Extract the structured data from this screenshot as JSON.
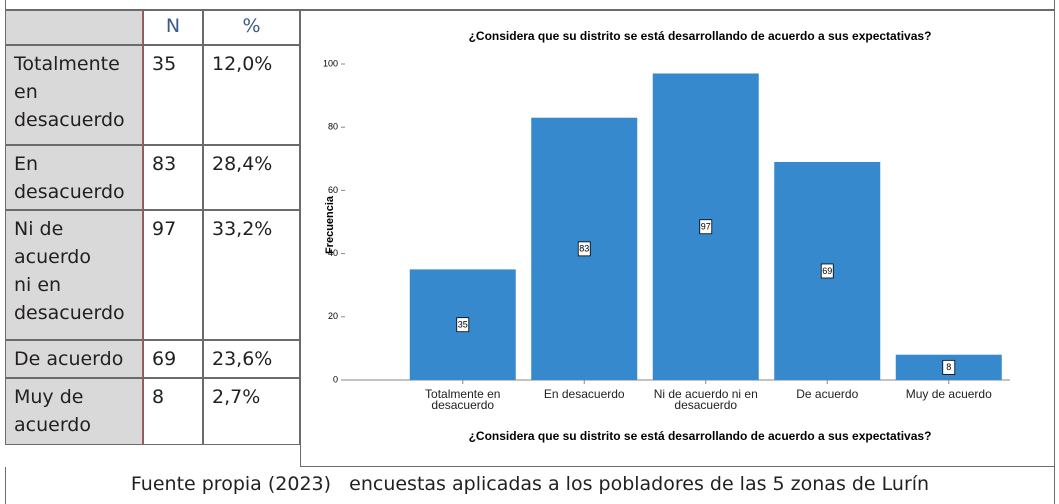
{
  "table": {
    "headers": [
      "N",
      "%"
    ],
    "rows": [
      {
        "label": "Totalmente en desacuerdo",
        "n": "35",
        "pct": "12,0%"
      },
      {
        "label": "En desacuerdo",
        "n": "83",
        "pct": "28,4%"
      },
      {
        "label": "Ni de acuerdo ni en desacuerdo",
        "n": "97",
        "pct": "33,2%"
      },
      {
        "label": "De acuerdo",
        "n": "69",
        "pct": "23,6%"
      },
      {
        "label": "Muy de acuerdo",
        "n": "8",
        "pct": "2,7%"
      }
    ]
  },
  "chart_data": {
    "type": "bar",
    "title": "¿Considera que su distrito se está desarrollando de acuerdo a sus expectativas?",
    "xlabel": "¿Considera que su distrito se está desarrollando de acuerdo a sus expectativas?",
    "ylabel": "Frecuencia",
    "categories": [
      "Totalmente en desacuerdo",
      "En desacuerdo",
      "Ni de acuerdo ni en desacuerdo",
      "De acuerdo",
      "Muy de acuerdo"
    ],
    "values": [
      35,
      83,
      97,
      69,
      8
    ],
    "color": "#3589cc",
    "ylim": [
      0,
      100
    ],
    "yticks": [
      0,
      20,
      40,
      60,
      80,
      100
    ],
    "grid": false
  },
  "footer": "Fuente propia (2023)   encuestas aplicadas a los pobladores de las 5 zonas de Lurín"
}
